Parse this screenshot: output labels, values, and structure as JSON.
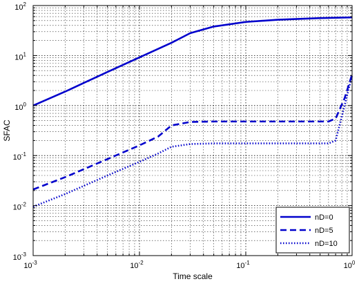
{
  "chart_data": {
    "type": "line",
    "title": "",
    "xlabel": "Time scale",
    "ylabel": "SFAC",
    "xscale": "log",
    "yscale": "log",
    "xlim": [
      0.001,
      1
    ],
    "ylim": [
      0.001,
      100
    ],
    "grid": true,
    "legend_position": "bottom-right",
    "color": "#0000cc",
    "x_ticks": [
      {
        "value": 0.001,
        "base": "10",
        "exp": "-3"
      },
      {
        "value": 0.01,
        "base": "10",
        "exp": "-2"
      },
      {
        "value": 0.1,
        "base": "10",
        "exp": "-1"
      },
      {
        "value": 1,
        "base": "10",
        "exp": "0"
      }
    ],
    "y_ticks": [
      {
        "value": 0.001,
        "base": "10",
        "exp": "-3"
      },
      {
        "value": 0.01,
        "base": "10",
        "exp": "-2"
      },
      {
        "value": 0.1,
        "base": "10",
        "exp": "-1"
      },
      {
        "value": 1,
        "base": "10",
        "exp": "0"
      },
      {
        "value": 10,
        "base": "10",
        "exp": "1"
      },
      {
        "value": 100,
        "base": "10",
        "exp": "2"
      }
    ],
    "series": [
      {
        "name": "nD=0",
        "style": "solid",
        "x": [
          0.001,
          0.002,
          0.005,
          0.01,
          0.02,
          0.03,
          0.05,
          0.1,
          0.2,
          0.5,
          1.0
        ],
        "y": [
          1.0,
          1.9,
          4.7,
          9.2,
          18.0,
          28.0,
          38.0,
          47.0,
          52.0,
          56.0,
          58.0
        ]
      },
      {
        "name": "nD=5",
        "style": "dashed",
        "x": [
          0.001,
          0.002,
          0.005,
          0.01,
          0.015,
          0.02,
          0.03,
          0.05,
          0.1,
          0.2,
          0.4,
          0.6,
          0.7,
          0.85,
          1.0
        ],
        "y": [
          0.021,
          0.037,
          0.085,
          0.16,
          0.24,
          0.4,
          0.47,
          0.48,
          0.48,
          0.48,
          0.48,
          0.48,
          0.55,
          1.4,
          4.2
        ]
      },
      {
        "name": "nD=10",
        "style": "dotted",
        "x": [
          0.001,
          0.002,
          0.005,
          0.01,
          0.015,
          0.02,
          0.03,
          0.05,
          0.1,
          0.2,
          0.4,
          0.6,
          0.7,
          0.85,
          1.0
        ],
        "y": [
          0.0095,
          0.017,
          0.04,
          0.075,
          0.11,
          0.15,
          0.17,
          0.175,
          0.175,
          0.175,
          0.175,
          0.175,
          0.2,
          1.0,
          4.0
        ]
      }
    ]
  }
}
